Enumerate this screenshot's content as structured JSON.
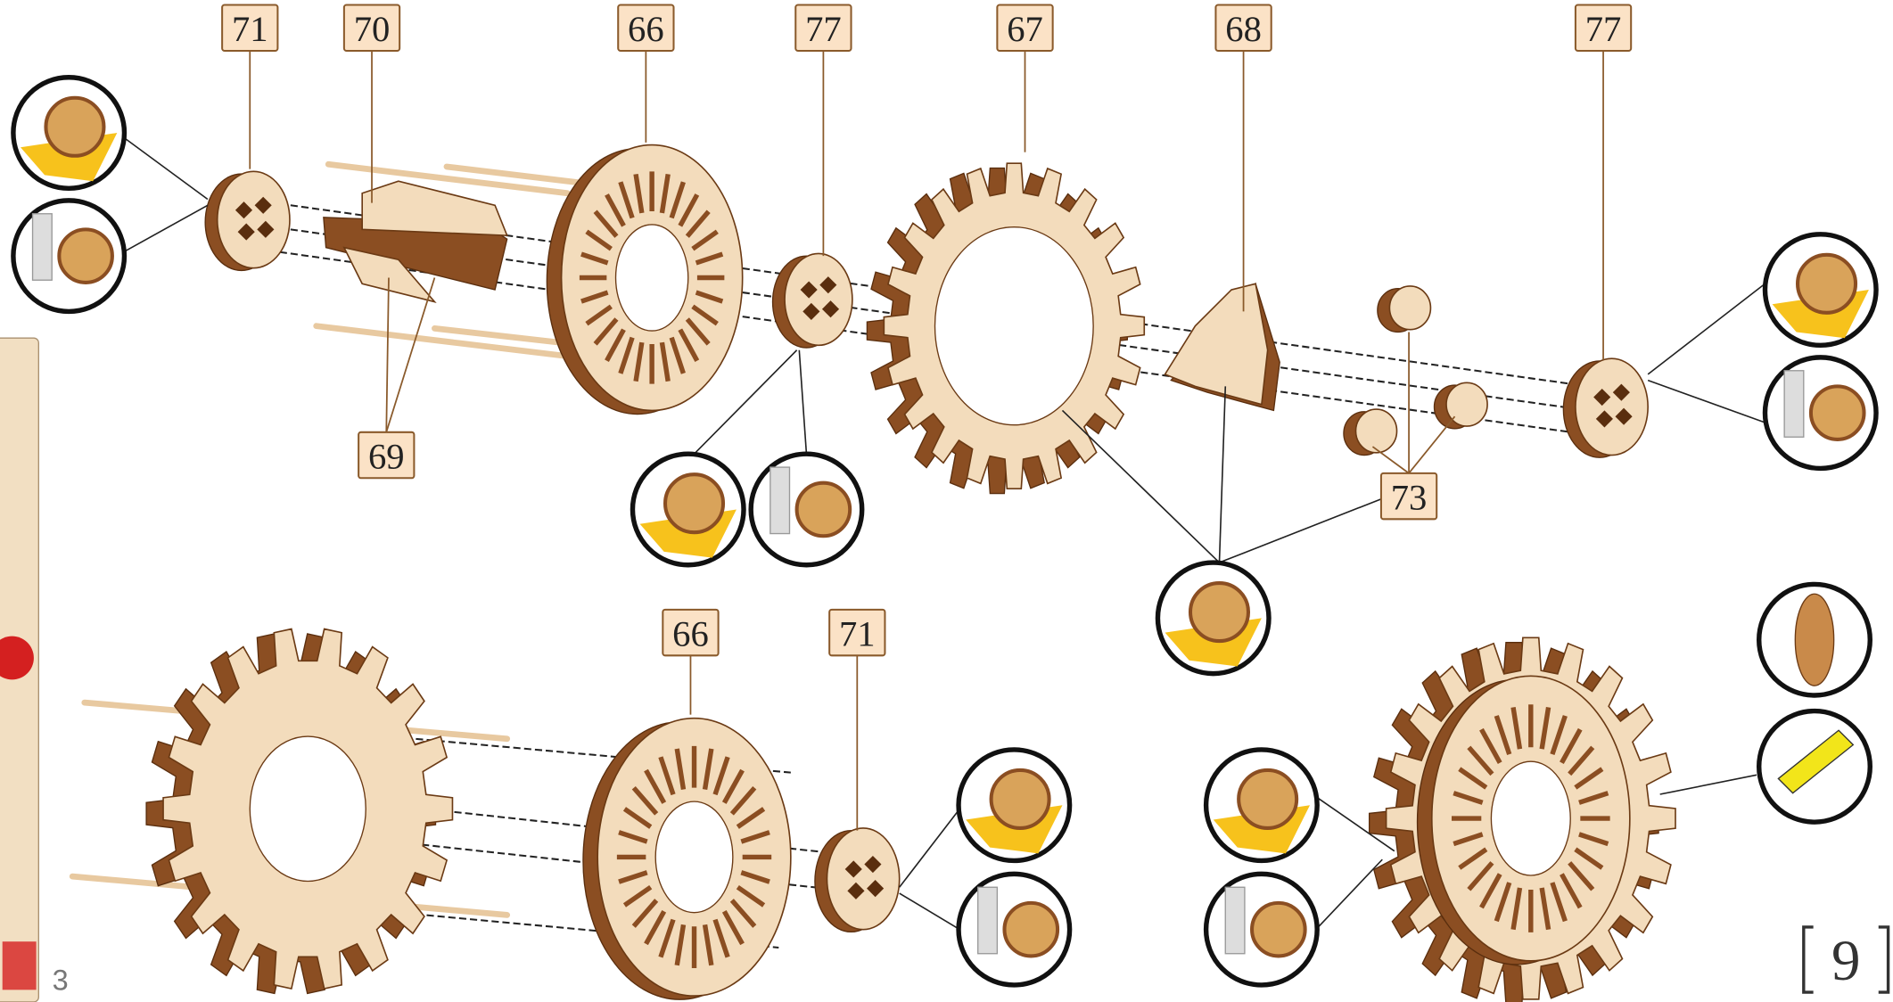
{
  "labels": [
    {
      "text": "71"
    },
    {
      "text": "70"
    },
    {
      "text": "66"
    },
    {
      "text": "77"
    },
    {
      "text": "67"
    },
    {
      "text": "68"
    },
    {
      "text": "77"
    },
    {
      "text": "69"
    },
    {
      "text": "73"
    },
    {
      "text": "66"
    },
    {
      "text": "71"
    }
  ],
  "page_number": "9",
  "sheet_number": "3"
}
